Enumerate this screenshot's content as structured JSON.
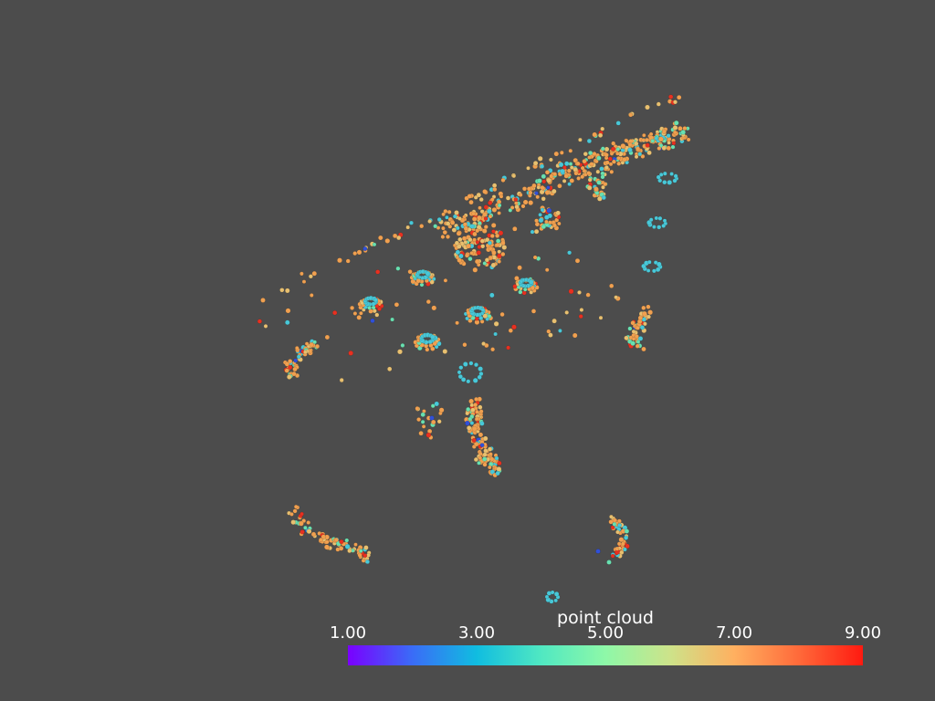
{
  "scalar_bar": {
    "title": "point cloud",
    "tick_labels": [
      "1.00",
      "3.00",
      "5.00",
      "7.00",
      "9.00"
    ],
    "range": [
      1.0,
      9.0
    ],
    "colormap": [
      "#7a00ff",
      "#3a6cf7",
      "#10bde0",
      "#50e8c2",
      "#8ef8a8",
      "#cde38a",
      "#ffb060",
      "#ff6a3a",
      "#ff1a10"
    ]
  },
  "background_color": "#4c4c4c",
  "point_colors": {
    "low": "#3050d8",
    "mid_low": "#48c8d8",
    "mid": "#68e0b0",
    "mid_high": "#e8c070",
    "high": "#f0a050",
    "max": "#e83020"
  }
}
